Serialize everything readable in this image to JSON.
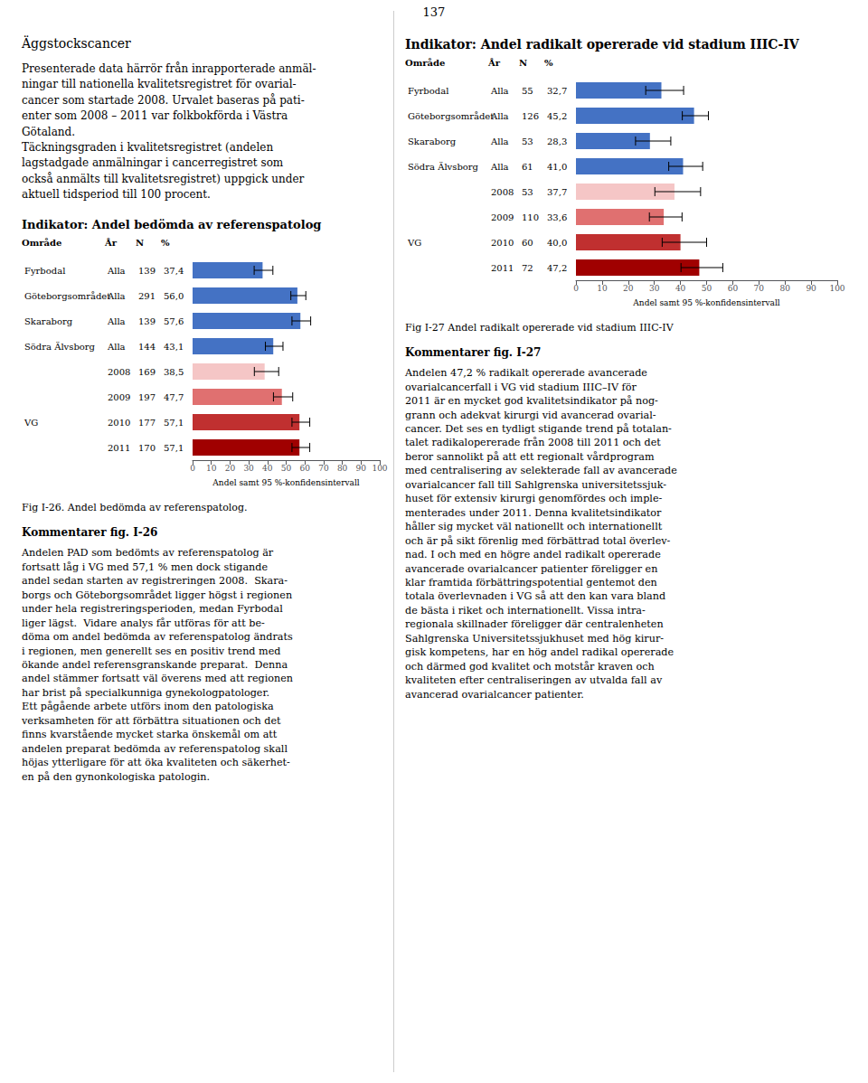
{
  "page_number": "137",
  "title": "Äggstockscancer",
  "text": "Presenterade data härrör från inrapporterade anmäl-\nningar till nationella kvalitetsregistret för ovarial-\ncancer som startade 2008. Urvalet baseras på pati-\nenter som 2008 – 2011 var folkbokförda i Västra\nGötaland.\nTäckningsgraden i kvalitetsregistret (andelen\nlagstadgade anmälningar i cancerregistret som\nockså anmälts till kvalitetsregistret) uppgick under\naktuell tidsperiod till 100 procent.",
  "chart_data": [
    {
      "type": "bar",
      "orientation": "horizontal",
      "title": "Indikator: Andel bedömda av referenspatolog",
      "table": {
        "header": [
          "Område",
          "År",
          "N",
          "%"
        ],
        "rows": [
          [
            "Fyrbodal",
            "Alla",
            "139",
            "37,4"
          ],
          [
            "Göteborgsområdet",
            "Alla",
            "291",
            "56,0"
          ],
          [
            "Skaraborg",
            "Alla",
            "139",
            "57,6"
          ],
          [
            "Södra Älvsborg",
            "Alla",
            "144",
            "43,1"
          ],
          [
            "",
            "2008",
            "169",
            "38,5"
          ],
          [
            "",
            "2009",
            "197",
            "47,7"
          ],
          [
            "VG",
            "2010",
            "177",
            "57,1"
          ],
          [
            "",
            "2011",
            "170",
            "57,1"
          ]
        ]
      },
      "values": [
        37.4,
        56.0,
        57.6,
        43.1,
        38.5,
        47.7,
        57.1,
        57.1
      ],
      "error_low": [
        4.5,
        3.5,
        4.5,
        4.2,
        5.5,
        4.5,
        4.0,
        4.0
      ],
      "error_high": [
        5.5,
        4.5,
        5.5,
        5.2,
        7.5,
        5.8,
        5.5,
        5.5
      ],
      "colors": [
        "#4472C4",
        "#4472C4",
        "#4472C4",
        "#4472C4",
        "#F5C6C6",
        "#E07070",
        "#C03030",
        "#A00000"
      ],
      "xlabel": "Andel samt 95 %-konfidensintervall",
      "xlim": [
        0,
        100
      ],
      "xticks": [
        0,
        10,
        20,
        30,
        40,
        50,
        60,
        70,
        80,
        90,
        100
      ],
      "grid": false,
      "caption": "Fig I-26. Andel bedömda av referenspatolog.",
      "comment_title": "Kommentarer fig. I-26",
      "comment_text": "Andelen PAD som bedömts av referenspatolog är\nfortsatt låg i VG med 57,1 % men dock stigande\nandel sedan starten av registreringen 2008.  Skara-\nborgs och Göteborgsområdet ligger högst i regionen\nunder hela registreringsperioden, medan Fyrbodal\nliger lägst.  Vidare analys får utföras för att be-\ndöma om andel bedömda av referenspatolog ändrats\ni regionen, men generellt ses en positiv trend med\nökande andel referensgranskande preparat.  Denna\nandel stämmer fortsatt väl överens med att regionen\nhar brist på specialkunniga gynekologpatologer.\nEtt pågående arbete utförs inom den patologiska\nverksamheten för att förbättra situationen och det\nfinns kvarstående mycket starka önskemål om att\nandelen preparat bedömda av referenspatolog skall\nhöjas ytterligare för att öka kvaliteten och säkerhet-\nen på den gynonkologiska patologin."
    },
    {
      "type": "bar",
      "orientation": "horizontal",
      "title": "Indikator: Andel radikalt opererade vid stadium IIIC-IV",
      "table": {
        "header": [
          "Område",
          "År",
          "N",
          "%"
        ],
        "rows": [
          [
            "Fyrbodal",
            "Alla",
            "55",
            "32,7"
          ],
          [
            "Göteborgsområdet",
            "Alla",
            "126",
            "45,2"
          ],
          [
            "Skaraborg",
            "Alla",
            "53",
            "28,3"
          ],
          [
            "Södra Älvsborg",
            "Alla",
            "61",
            "41,0"
          ],
          [
            "",
            "2008",
            "53",
            "37,7"
          ],
          [
            "",
            "2009",
            "110",
            "33,6"
          ],
          [
            "VG",
            "2010",
            "60",
            "40,0"
          ],
          [
            "",
            "2011",
            "72",
            "47,2"
          ]
        ]
      },
      "values": [
        32.7,
        45.2,
        28.3,
        41.0,
        37.7,
        33.6,
        40.0,
        47.2
      ],
      "error_low": [
        6.0,
        4.5,
        5.5,
        5.5,
        7.5,
        5.5,
        7.0,
        7.0
      ],
      "error_high": [
        8.5,
        5.5,
        8.0,
        7.5,
        10.0,
        7.0,
        10.0,
        9.0
      ],
      "colors": [
        "#4472C4",
        "#4472C4",
        "#4472C4",
        "#4472C4",
        "#F5C6C6",
        "#E07070",
        "#C03030",
        "#A00000"
      ],
      "xlabel": "Andel samt 95 %-konfidensintervall",
      "xlim": [
        0,
        100
      ],
      "xticks": [
        0,
        10,
        20,
        30,
        40,
        50,
        60,
        70,
        80,
        90,
        100
      ],
      "grid": false,
      "caption": "Fig I-27 Andel radikalt opererade vid stadium IIIC-IV",
      "comment_title": "Kommentarer fig. I-27",
      "comment_text": "Andelen 47,2 % radikalt opererade avancerade\novarialcancerfall i VG vid stadium IIIC–IV för\n2011 är en mycket god kvalitetsindikator på nog-\ngrann och adekvat kirurgi vid avancerad ovarial-\ncancer. Det ses en tydligt stigande trend på totalan-\ntalet radikalopererade från 2008 till 2011 och det\nberor sannolikt på att ett regionalt vårdprogram\nmed centralisering av selekterade fall av avancerade\novarialcancer fall till Sahlgrenska universitetssjuk-\nhuset för extensiv kirurgi genomfördes och imple-\nmenterades under 2011. Denna kvalitetsindikator\nhåller sig mycket väl nationellt och internationellt\noch är på sikt förenlig med förbättrad total överlev-\nnad. I och med en högre andel radikalt opererade\navancerade ovarialcancer patienter föreligger en\nklar framtida förbättringspotential gentemot den\ntotala överlevnaden i VG så att den kan vara bland\nde bästa i riket och internationellt. Vissa intra-\nregionala skillnader föreligger där centralenheten\nSahlgrenska Universitetssjukhuset med hög kirur-\ngisk kompetens, har en hög andel radikal opererade\noch därmed god kvalitet och motstår kraven och\nkvaliteten efter centraliseringen av utvalda fall av\navancerad ovarialcancer patienter."
    }
  ]
}
